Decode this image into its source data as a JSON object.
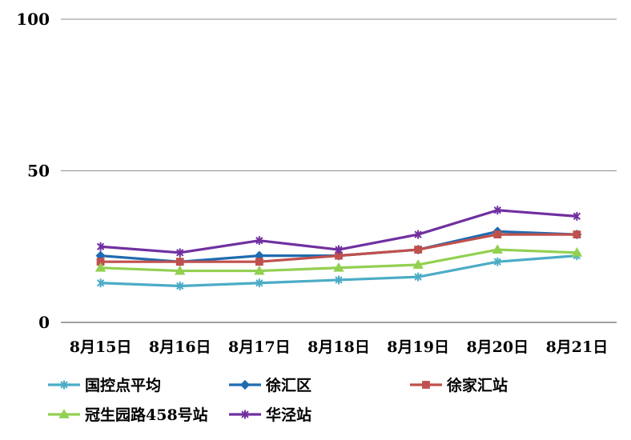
{
  "chart_data": {
    "type": "line",
    "title": "",
    "xlabel": "",
    "ylabel": "",
    "ylim": [
      0,
      100
    ],
    "yticks": [
      0,
      50,
      100
    ],
    "grid": true,
    "legend_position": "bottom",
    "categories": [
      "8月15日",
      "8月16日",
      "8月17日",
      "8月18日",
      "8月19日",
      "8月20日",
      "8月21日"
    ],
    "series": [
      {
        "name": "国控点平均",
        "color": "#4bacc6",
        "marker": "asterisk",
        "values": [
          13,
          12,
          13,
          14,
          15,
          20,
          22
        ]
      },
      {
        "name": "徐汇区",
        "color": "#1f6bb0",
        "marker": "diamond",
        "values": [
          22,
          20,
          22,
          22,
          24,
          30,
          29
        ]
      },
      {
        "name": "徐家汇站",
        "color": "#c0504d",
        "marker": "square",
        "values": [
          20,
          20,
          20,
          22,
          24,
          29,
          29
        ]
      },
      {
        "name": "冠生园路458号站",
        "color": "#92d050",
        "marker": "triangle",
        "values": [
          18,
          17,
          17,
          18,
          19,
          24,
          23
        ]
      },
      {
        "name": "华泾站",
        "color": "#7030a0",
        "marker": "asterisk",
        "values": [
          25,
          23,
          27,
          24,
          29,
          37,
          35
        ]
      }
    ]
  }
}
